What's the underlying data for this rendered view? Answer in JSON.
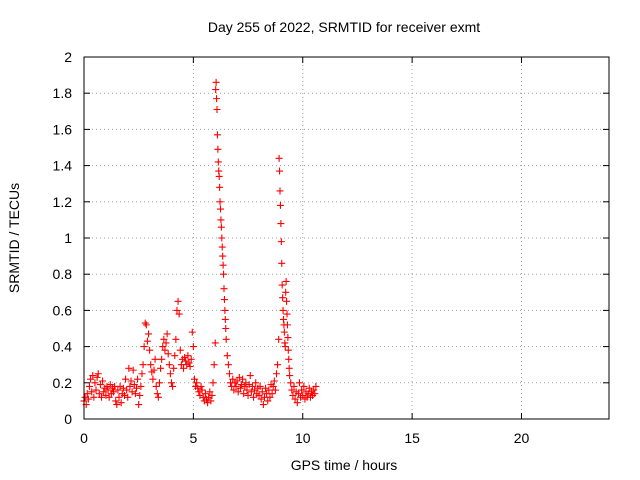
{
  "chart_data": {
    "type": "scatter",
    "title": "Day 255 of 2022, SRMTID for receiver exmt",
    "xlabel": "GPS time / hours",
    "ylabel": "SRMTID / TECUs",
    "xlim": [
      0,
      24
    ],
    "ylim": [
      0,
      2
    ],
    "xticks": [
      0,
      5,
      10,
      15,
      20
    ],
    "yticks": [
      0,
      0.2,
      0.4,
      0.6,
      0.8,
      1,
      1.2,
      1.4,
      1.6,
      1.8,
      2
    ],
    "grid": true,
    "marker": "+",
    "color": "#ff0000",
    "series": [
      {
        "name": "SRMTID",
        "points": [
          [
            0.0,
            0.1
          ],
          [
            0.05,
            0.12
          ],
          [
            0.1,
            0.08
          ],
          [
            0.15,
            0.14
          ],
          [
            0.2,
            0.11
          ],
          [
            0.25,
            0.18
          ],
          [
            0.3,
            0.22
          ],
          [
            0.35,
            0.15
          ],
          [
            0.4,
            0.24
          ],
          [
            0.45,
            0.12
          ],
          [
            0.5,
            0.2
          ],
          [
            0.55,
            0.16
          ],
          [
            0.6,
            0.23
          ],
          [
            0.65,
            0.25
          ],
          [
            0.7,
            0.14
          ],
          [
            0.75,
            0.19
          ],
          [
            0.8,
            0.12
          ],
          [
            0.85,
            0.21
          ],
          [
            0.9,
            0.15
          ],
          [
            0.95,
            0.17
          ],
          [
            1.0,
            0.13
          ],
          [
            1.05,
            0.18
          ],
          [
            1.1,
            0.16
          ],
          [
            1.15,
            0.12
          ],
          [
            1.2,
            0.19
          ],
          [
            1.25,
            0.14
          ],
          [
            1.3,
            0.17
          ],
          [
            1.35,
            0.15
          ],
          [
            1.4,
            0.18
          ],
          [
            1.45,
            0.1
          ],
          [
            1.5,
            0.08
          ],
          [
            1.55,
            0.16
          ],
          [
            1.6,
            0.12
          ],
          [
            1.65,
            0.18
          ],
          [
            1.7,
            0.09
          ],
          [
            1.75,
            0.14
          ],
          [
            1.8,
            0.17
          ],
          [
            1.85,
            0.13
          ],
          [
            1.9,
            0.22
          ],
          [
            1.95,
            0.16
          ],
          [
            2.0,
            0.12
          ],
          [
            2.05,
            0.28
          ],
          [
            2.1,
            0.18
          ],
          [
            2.15,
            0.21
          ],
          [
            2.2,
            0.15
          ],
          [
            2.25,
            0.27
          ],
          [
            2.3,
            0.19
          ],
          [
            2.35,
            0.14
          ],
          [
            2.4,
            0.17
          ],
          [
            2.45,
            0.22
          ],
          [
            2.5,
            0.08
          ],
          [
            2.55,
            0.13
          ],
          [
            2.6,
            0.18
          ],
          [
            2.65,
            0.25
          ],
          [
            2.7,
            0.3
          ],
          [
            2.75,
            0.4
          ],
          [
            2.8,
            0.53
          ],
          [
            2.85,
            0.52
          ],
          [
            2.9,
            0.43
          ],
          [
            2.95,
            0.47
          ],
          [
            3.0,
            0.38
          ],
          [
            3.05,
            0.3
          ],
          [
            3.1,
            0.26
          ],
          [
            3.15,
            0.22
          ],
          [
            3.2,
            0.27
          ],
          [
            3.25,
            0.33
          ],
          [
            3.3,
            0.18
          ],
          [
            3.35,
            0.14
          ],
          [
            3.4,
            0.12
          ],
          [
            3.45,
            0.2
          ],
          [
            3.5,
            0.28
          ],
          [
            3.55,
            0.33
          ],
          [
            3.6,
            0.4
          ],
          [
            3.65,
            0.44
          ],
          [
            3.7,
            0.38
          ],
          [
            3.75,
            0.42
          ],
          [
            3.8,
            0.47
          ],
          [
            3.85,
            0.36
          ],
          [
            3.9,
            0.3
          ],
          [
            3.95,
            0.25
          ],
          [
            4.0,
            0.2
          ],
          [
            4.05,
            0.18
          ],
          [
            4.1,
            0.28
          ],
          [
            4.15,
            0.35
          ],
          [
            4.2,
            0.44
          ],
          [
            4.25,
            0.6
          ],
          [
            4.3,
            0.65
          ],
          [
            4.35,
            0.58
          ],
          [
            4.4,
            0.38
          ],
          [
            4.45,
            0.3
          ],
          [
            4.5,
            0.33
          ],
          [
            4.55,
            0.28
          ],
          [
            4.6,
            0.34
          ],
          [
            4.65,
            0.32
          ],
          [
            4.7,
            0.3
          ],
          [
            4.75,
            0.35
          ],
          [
            4.8,
            0.31
          ],
          [
            4.85,
            0.29
          ],
          [
            4.9,
            0.33
          ],
          [
            4.95,
            0.48
          ],
          [
            5.0,
            0.4
          ],
          [
            5.05,
            0.22
          ],
          [
            5.1,
            0.18
          ],
          [
            5.15,
            0.2
          ],
          [
            5.2,
            0.17
          ],
          [
            5.25,
            0.15
          ],
          [
            5.3,
            0.13
          ],
          [
            5.35,
            0.18
          ],
          [
            5.4,
            0.16
          ],
          [
            5.45,
            0.12
          ],
          [
            5.5,
            0.1
          ],
          [
            5.55,
            0.14
          ],
          [
            5.6,
            0.11
          ],
          [
            5.65,
            0.09
          ],
          [
            5.7,
            0.12
          ],
          [
            5.75,
            0.15
          ],
          [
            5.8,
            0.1
          ],
          [
            5.85,
            0.13
          ],
          [
            5.9,
            0.2
          ],
          [
            5.95,
            0.3
          ],
          [
            6.0,
            0.42
          ],
          [
            6.02,
            1.82
          ],
          [
            6.04,
            1.86
          ],
          [
            6.06,
            1.77
          ],
          [
            6.08,
            1.71
          ],
          [
            6.1,
            1.57
          ],
          [
            6.12,
            1.49
          ],
          [
            6.14,
            1.42
          ],
          [
            6.16,
            1.37
          ],
          [
            6.18,
            1.34
          ],
          [
            6.2,
            1.28
          ],
          [
            6.22,
            1.2
          ],
          [
            6.24,
            1.16
          ],
          [
            6.26,
            1.1
          ],
          [
            6.28,
            1.06
          ],
          [
            6.3,
            1.0
          ],
          [
            6.32,
            0.95
          ],
          [
            6.34,
            0.9
          ],
          [
            6.36,
            0.85
          ],
          [
            6.38,
            0.8
          ],
          [
            6.4,
            0.72
          ],
          [
            6.42,
            0.66
          ],
          [
            6.44,
            0.6
          ],
          [
            6.46,
            0.55
          ],
          [
            6.48,
            0.5
          ],
          [
            6.5,
            0.44
          ],
          [
            6.55,
            0.35
          ],
          [
            6.6,
            0.3
          ],
          [
            6.65,
            0.25
          ],
          [
            6.7,
            0.2
          ],
          [
            6.75,
            0.18
          ],
          [
            6.8,
            0.22
          ],
          [
            6.85,
            0.16
          ],
          [
            6.9,
            0.2
          ],
          [
            6.95,
            0.18
          ],
          [
            7.0,
            0.21
          ],
          [
            7.05,
            0.15
          ],
          [
            7.1,
            0.23
          ],
          [
            7.15,
            0.17
          ],
          [
            7.2,
            0.19
          ],
          [
            7.25,
            0.22
          ],
          [
            7.3,
            0.14
          ],
          [
            7.35,
            0.18
          ],
          [
            7.4,
            0.2
          ],
          [
            7.45,
            0.16
          ],
          [
            7.5,
            0.13
          ],
          [
            7.55,
            0.19
          ],
          [
            7.6,
            0.24
          ],
          [
            7.65,
            0.15
          ],
          [
            7.7,
            0.18
          ],
          [
            7.75,
            0.12
          ],
          [
            7.8,
            0.16
          ],
          [
            7.85,
            0.2
          ],
          [
            7.9,
            0.14
          ],
          [
            7.95,
            0.17
          ],
          [
            8.0,
            0.13
          ],
          [
            8.05,
            0.18
          ],
          [
            8.1,
            0.11
          ],
          [
            8.15,
            0.15
          ],
          [
            8.2,
            0.08
          ],
          [
            8.25,
            0.12
          ],
          [
            8.3,
            0.17
          ],
          [
            8.35,
            0.14
          ],
          [
            8.4,
            0.1
          ],
          [
            8.45,
            0.16
          ],
          [
            8.5,
            0.12
          ],
          [
            8.55,
            0.19
          ],
          [
            8.6,
            0.14
          ],
          [
            8.65,
            0.18
          ],
          [
            8.7,
            0.21
          ],
          [
            8.75,
            0.16
          ],
          [
            8.8,
            0.25
          ],
          [
            8.85,
            0.3
          ],
          [
            8.9,
            0.44
          ],
          [
            8.92,
            1.44
          ],
          [
            8.94,
            1.37
          ],
          [
            8.96,
            1.26
          ],
          [
            8.98,
            1.18
          ],
          [
            9.0,
            1.08
          ],
          [
            9.02,
            0.98
          ],
          [
            9.04,
            0.86
          ],
          [
            9.06,
            0.74
          ],
          [
            9.08,
            0.67
          ],
          [
            9.1,
            0.6
          ],
          [
            9.12,
            0.55
          ],
          [
            9.14,
            0.52
          ],
          [
            9.16,
            0.48
          ],
          [
            9.18,
            0.42
          ],
          [
            9.2,
            0.4
          ],
          [
            9.22,
            0.7
          ],
          [
            9.24,
            0.76
          ],
          [
            9.26,
            0.65
          ],
          [
            9.28,
            0.58
          ],
          [
            9.3,
            0.52
          ],
          [
            9.32,
            0.45
          ],
          [
            9.34,
            0.38
          ],
          [
            9.36,
            0.33
          ],
          [
            9.38,
            0.28
          ],
          [
            9.4,
            0.24
          ],
          [
            9.45,
            0.2
          ],
          [
            9.5,
            0.16
          ],
          [
            9.55,
            0.13
          ],
          [
            9.6,
            0.18
          ],
          [
            9.65,
            0.11
          ],
          [
            9.7,
            0.15
          ],
          [
            9.75,
            0.09
          ],
          [
            9.8,
            0.14
          ],
          [
            9.85,
            0.2
          ],
          [
            9.9,
            0.12
          ],
          [
            9.95,
            0.16
          ],
          [
            10.0,
            0.13
          ],
          [
            10.05,
            0.18
          ],
          [
            10.1,
            0.11
          ],
          [
            10.15,
            0.15
          ],
          [
            10.2,
            0.12
          ],
          [
            10.25,
            0.14
          ],
          [
            10.3,
            0.17
          ],
          [
            10.35,
            0.12
          ],
          [
            10.4,
            0.15
          ],
          [
            10.45,
            0.13
          ],
          [
            10.5,
            0.16
          ],
          [
            10.55,
            0.14
          ],
          [
            10.6,
            0.18
          ]
        ]
      }
    ]
  }
}
